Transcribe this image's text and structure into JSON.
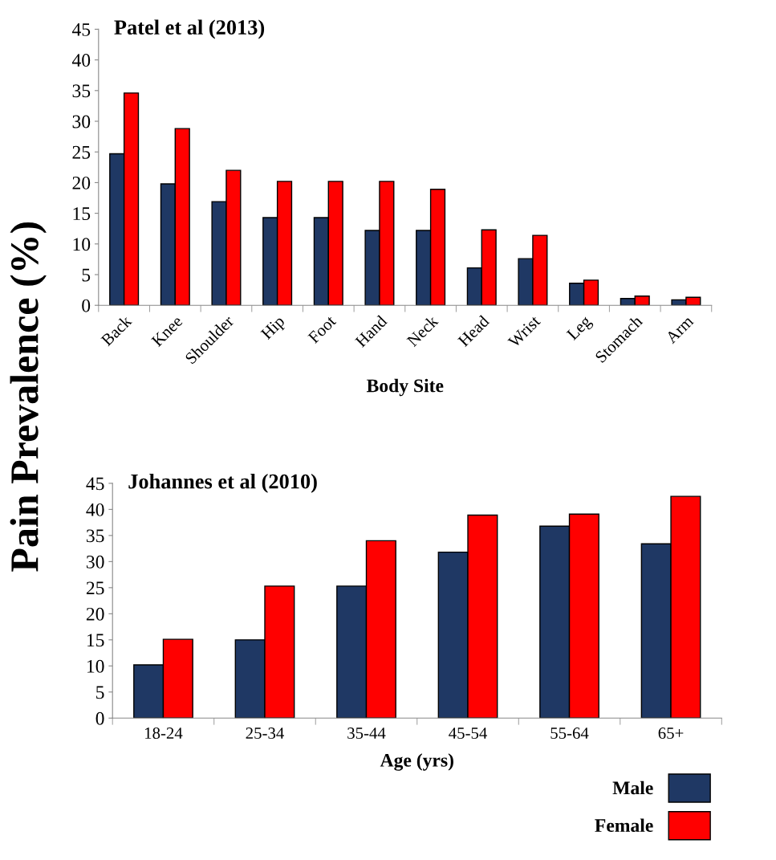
{
  "chart_data": [
    {
      "type": "bar",
      "title": "Patel et al (2013)",
      "xlabel": "Body Site",
      "ylabel": "Pain Prevalence (%)",
      "categories": [
        "Back",
        "Knee",
        "Shoulder",
        "Hip",
        "Foot",
        "Hand",
        "Neck",
        "Head",
        "Wrist",
        "Leg",
        "Stomach",
        "Arm"
      ],
      "series": [
        {
          "color": "#1f3864",
          "values": [
            24.7,
            19.8,
            16.9,
            14.3,
            14.3,
            12.2,
            12.2,
            6.1,
            7.6,
            3.6,
            1.1,
            0.9
          ]
        },
        {
          "color": "#ff0000",
          "values": [
            34.6,
            28.8,
            22.0,
            20.2,
            20.2,
            20.2,
            18.9,
            12.3,
            11.4,
            4.1,
            1.5,
            1.3
          ]
        }
      ],
      "ylim": [
        0,
        45
      ],
      "yticks": [
        0,
        5,
        10,
        15,
        20,
        25,
        30,
        35,
        40,
        45
      ],
      "grid": false,
      "legend": false
    },
    {
      "type": "bar",
      "title": "Johannes et al (2010)",
      "xlabel": "Age (yrs)",
      "categories": [
        "18-24",
        "25-34",
        "35-44",
        "45-54",
        "55-64",
        "65+"
      ],
      "series": [
        {
          "name": "Male",
          "color": "#1f3864",
          "values": [
            10.2,
            15.0,
            25.3,
            31.8,
            36.8,
            33.4
          ]
        },
        {
          "name": "Female",
          "color": "#ff0000",
          "values": [
            15.1,
            25.3,
            34.0,
            38.9,
            39.1,
            42.5
          ]
        }
      ],
      "ylim": [
        0,
        45
      ],
      "yticks": [
        0,
        5,
        10,
        15,
        20,
        25,
        30,
        35,
        40,
        45
      ],
      "grid": false,
      "legend": "bottom right"
    }
  ]
}
